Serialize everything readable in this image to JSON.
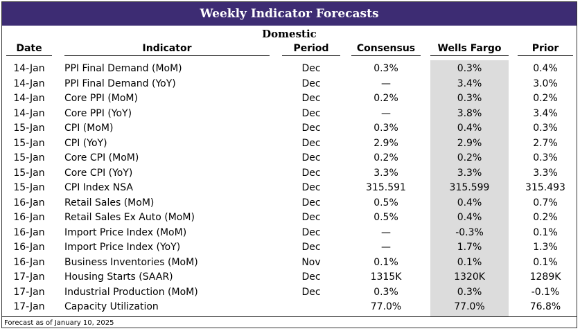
{
  "title": "Weekly Indicator Forecasts",
  "section": "Domestic",
  "columns": {
    "date": "Date",
    "indicator": "Indicator",
    "period": "Period",
    "consensus": "Consensus",
    "wells_fargo": "Wells Fargo",
    "prior": "Prior"
  },
  "rows": [
    {
      "date": "14-Jan",
      "indicator": "PPI Final Demand (MoM)",
      "period": "Dec",
      "consensus": "0.3%",
      "wells_fargo": "0.3%",
      "prior": "0.4%"
    },
    {
      "date": "14-Jan",
      "indicator": "PPI Final Demand (YoY)",
      "period": "Dec",
      "consensus": "—",
      "wells_fargo": "3.4%",
      "prior": "3.0%"
    },
    {
      "date": "14-Jan",
      "indicator": "Core PPI (MoM)",
      "period": "Dec",
      "consensus": "0.2%",
      "wells_fargo": "0.3%",
      "prior": "0.2%"
    },
    {
      "date": "14-Jan",
      "indicator": "Core PPI (YoY)",
      "period": "Dec",
      "consensus": "—",
      "wells_fargo": "3.8%",
      "prior": "3.4%"
    },
    {
      "date": "15-Jan",
      "indicator": "CPI (MoM)",
      "period": "Dec",
      "consensus": "0.3%",
      "wells_fargo": "0.4%",
      "prior": "0.3%"
    },
    {
      "date": "15-Jan",
      "indicator": "CPI (YoY)",
      "period": "Dec",
      "consensus": "2.9%",
      "wells_fargo": "2.9%",
      "prior": "2.7%"
    },
    {
      "date": "15-Jan",
      "indicator": "Core CPI (MoM)",
      "period": "Dec",
      "consensus": "0.2%",
      "wells_fargo": "0.2%",
      "prior": "0.3%"
    },
    {
      "date": "15-Jan",
      "indicator": "Core CPI (YoY)",
      "period": "Dec",
      "consensus": "3.3%",
      "wells_fargo": "3.3%",
      "prior": "3.3%"
    },
    {
      "date": "15-Jan",
      "indicator": "CPI Index NSA",
      "period": "Dec",
      "consensus": "315.591",
      "wells_fargo": "315.599",
      "prior": "315.493"
    },
    {
      "date": "16-Jan",
      "indicator": "Retail Sales (MoM)",
      "period": "Dec",
      "consensus": "0.5%",
      "wells_fargo": "0.4%",
      "prior": "0.7%"
    },
    {
      "date": "16-Jan",
      "indicator": "Retail Sales Ex Auto (MoM)",
      "period": "Dec",
      "consensus": "0.5%",
      "wells_fargo": "0.4%",
      "prior": "0.2%"
    },
    {
      "date": "16-Jan",
      "indicator": "Import Price Index (MoM)",
      "period": "Dec",
      "consensus": "—",
      "wells_fargo": "-0.3%",
      "prior": "0.1%"
    },
    {
      "date": "16-Jan",
      "indicator": "Import Price Index (YoY)",
      "period": "Dec",
      "consensus": "—",
      "wells_fargo": "1.7%",
      "prior": "1.3%"
    },
    {
      "date": "16-Jan",
      "indicator": "Business Inventories (MoM)",
      "period": "Nov",
      "consensus": "0.1%",
      "wells_fargo": "0.1%",
      "prior": "0.1%"
    },
    {
      "date": "17-Jan",
      "indicator": "Housing Starts (SAAR)",
      "period": "Dec",
      "consensus": "1315K",
      "wells_fargo": "1320K",
      "prior": "1289K"
    },
    {
      "date": "17-Jan",
      "indicator": "Industrial Production (MoM)",
      "period": "Dec",
      "consensus": "0.3%",
      "wells_fargo": "0.3%",
      "prior": "-0.1%"
    },
    {
      "date": "17-Jan",
      "indicator": "Capacity Utilization",
      "period": "",
      "consensus": "77.0%",
      "wells_fargo": "77.0%",
      "prior": "76.8%"
    }
  ],
  "footnote": "Forecast as of January 10, 2025",
  "colors": {
    "banner": "#3d2c73",
    "highlight": "#dcdcdc"
  }
}
